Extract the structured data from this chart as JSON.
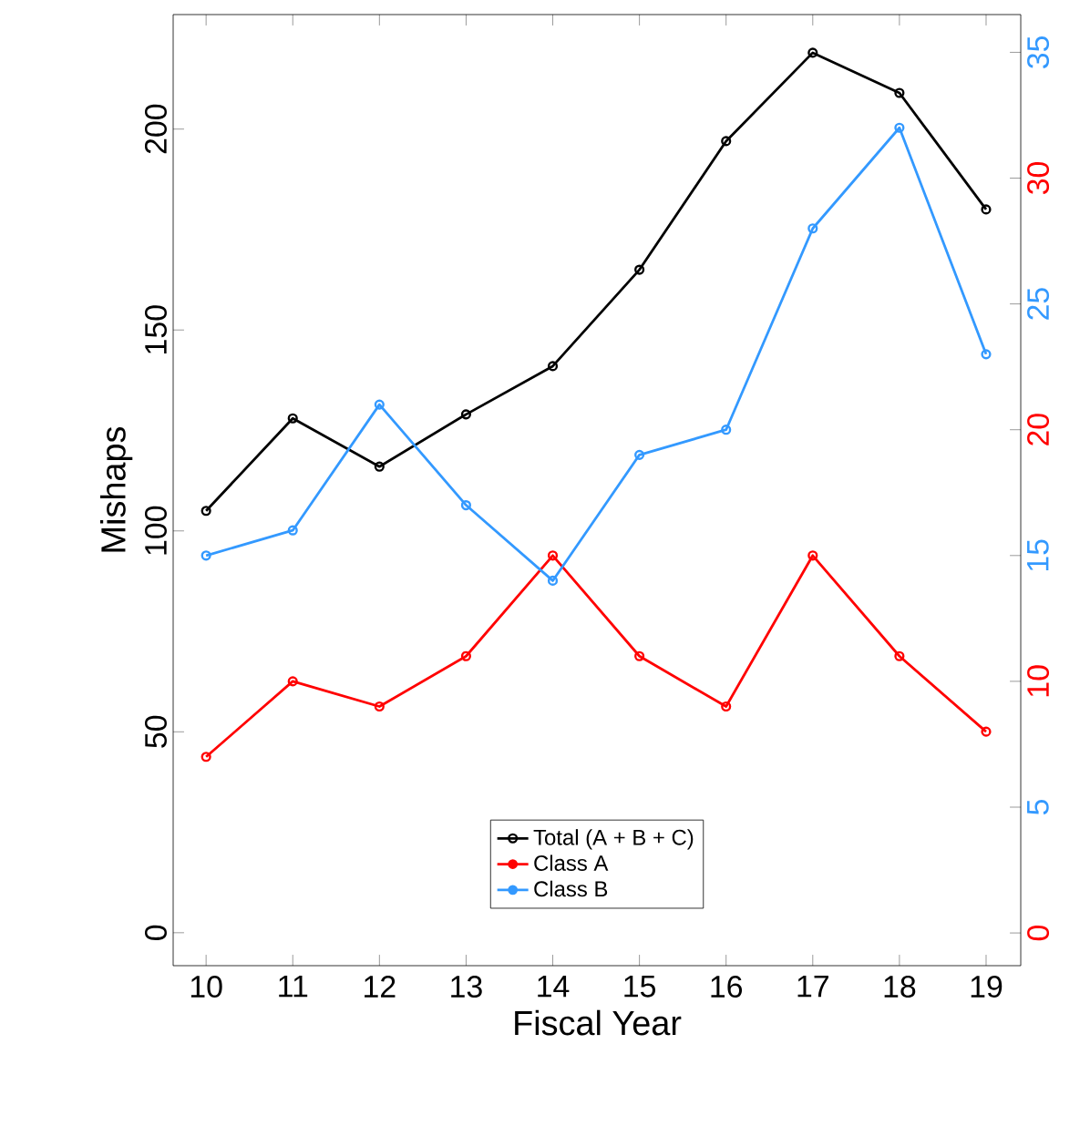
{
  "chart_data": {
    "type": "line",
    "xlabel": "Fiscal Year",
    "ylabel": "Mishaps",
    "x": [
      10,
      11,
      12,
      13,
      14,
      15,
      16,
      17,
      18,
      19
    ],
    "xlim": [
      9.62,
      19.4
    ],
    "xticks": [
      10,
      11,
      12,
      13,
      14,
      15,
      16,
      17,
      18,
      19
    ],
    "ylim": [
      -8.2,
      228.5
    ],
    "yticks": [
      0,
      50,
      100,
      150,
      200
    ],
    "y2lim": [
      -1.3,
      36.5
    ],
    "y2ticks": [
      0,
      5,
      10,
      15,
      20,
      25,
      30,
      35
    ],
    "marker": "circle",
    "line_style": "solid",
    "grid": false,
    "legend": "bottom",
    "series": [
      {
        "name": "Total (A + B + C)",
        "color": "#000000",
        "values": [
          105,
          128,
          116,
          129,
          141,
          165,
          197,
          219,
          209,
          180
        ]
      },
      {
        "name": "Class A",
        "color": "#ff0000",
        "axis": "y2",
        "values": [
          7,
          10,
          9,
          11,
          15,
          11,
          9,
          15,
          11,
          8
        ]
      },
      {
        "name": "Class B",
        "color": "#3399ff",
        "axis": "y2",
        "values": [
          15,
          16,
          21,
          17,
          14,
          19,
          20,
          28,
          32,
          23
        ]
      }
    ]
  }
}
